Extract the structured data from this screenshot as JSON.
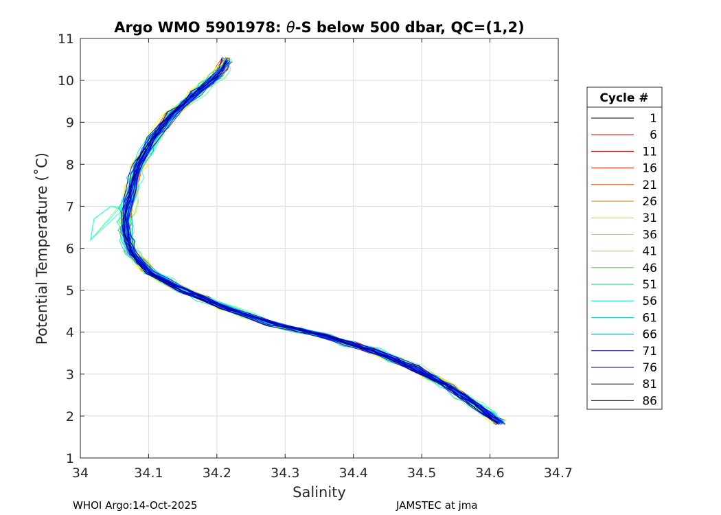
{
  "chart_data": {
    "type": "line",
    "title_prefix": "Argo WMO 5901978: ",
    "title_theta": "θ",
    "title_suffix": "-S below 500 dbar,  QC=(1,2)",
    "xlabel": "Salinity",
    "ylabel": "Potential Temperature (˚C)",
    "xlim": [
      34.0,
      34.7
    ],
    "ylim": [
      1,
      11
    ],
    "xticks": [
      "34",
      "34.1",
      "34.2",
      "34.3",
      "34.4",
      "34.5",
      "34.6",
      "34.7"
    ],
    "yticks": [
      "1",
      "2",
      "3",
      "4",
      "5",
      "6",
      "7",
      "8",
      "9",
      "10",
      "11"
    ],
    "grid": true,
    "legend": {
      "title": "Cycle #",
      "position": "right",
      "entries": [
        "1",
        "6",
        "11",
        "16",
        "21",
        "26",
        "31",
        "36",
        "41",
        "46",
        "51",
        "56",
        "61",
        "66",
        "71",
        "76",
        "81",
        "86"
      ],
      "colors": [
        "#000000",
        "#800000",
        "#cc0000",
        "#e02000",
        "#e05000",
        "#c08000",
        "#d0d000",
        "#c0e000",
        "#90e000",
        "#40e020",
        "#00e080",
        "#00e0e0",
        "#00c0c0",
        "#008080",
        "#000080",
        "#000060",
        "#000050",
        "#0000a0"
      ]
    },
    "base_profile": [
      [
        34.215,
        10.5
      ],
      [
        34.2,
        10.1
      ],
      [
        34.17,
        9.7
      ],
      [
        34.135,
        9.2
      ],
      [
        34.105,
        8.6
      ],
      [
        34.085,
        8.0
      ],
      [
        34.075,
        7.4
      ],
      [
        34.068,
        6.9
      ],
      [
        34.066,
        6.4
      ],
      [
        34.075,
        5.9
      ],
      [
        34.1,
        5.45
      ],
      [
        34.15,
        5.0
      ],
      [
        34.21,
        4.6
      ],
      [
        34.28,
        4.2
      ],
      [
        34.36,
        3.9
      ],
      [
        34.43,
        3.55
      ],
      [
        34.49,
        3.15
      ],
      [
        34.54,
        2.7
      ],
      [
        34.58,
        2.25
      ],
      [
        34.615,
        1.85
      ]
    ],
    "series_count": 86
  },
  "footer": {
    "left": "WHOI Argo:14-Oct-2025",
    "right": "JAMSTEC at jma"
  }
}
